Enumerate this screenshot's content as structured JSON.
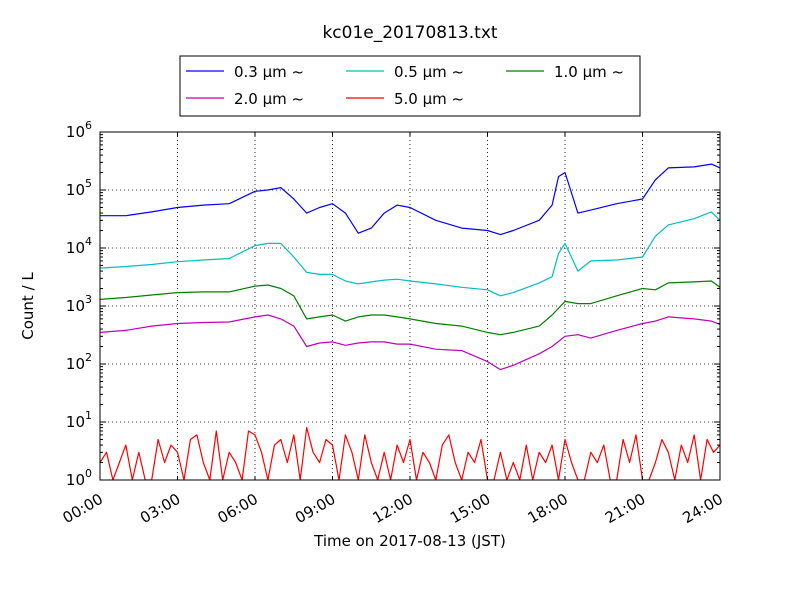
{
  "chart_data": {
    "type": "line",
    "title": "kc01e_20170813.txt",
    "xlabel": "Time on 2017-08-13 (JST)",
    "ylabel": "Count / L",
    "yscale": "log",
    "ylim": [
      1,
      1000000
    ],
    "xlim": [
      "00:00",
      "24:00"
    ],
    "xticks": [
      "00:00",
      "03:00",
      "06:00",
      "09:00",
      "12:00",
      "15:00",
      "18:00",
      "21:00",
      "24:00"
    ],
    "yticks": [
      {
        "base": "10",
        "exp": "0"
      },
      {
        "base": "10",
        "exp": "1"
      },
      {
        "base": "10",
        "exp": "2"
      },
      {
        "base": "10",
        "exp": "3"
      },
      {
        "base": "10",
        "exp": "4"
      },
      {
        "base": "10",
        "exp": "5"
      },
      {
        "base": "10",
        "exp": "6"
      }
    ],
    "grid": true,
    "legend_position": "top-center",
    "series": [
      {
        "name": "0.3 μm ~",
        "color": "#0000ff",
        "x": [
          "00:00",
          "01:00",
          "02:00",
          "03:00",
          "04:00",
          "05:00",
          "06:00",
          "06:30",
          "07:00",
          "07:30",
          "08:00",
          "08:30",
          "09:00",
          "09:30",
          "10:00",
          "10:30",
          "11:00",
          "11:30",
          "12:00",
          "13:00",
          "14:00",
          "15:00",
          "15:30",
          "16:00",
          "17:00",
          "17:30",
          "17:45",
          "18:00",
          "18:30",
          "19:00",
          "20:00",
          "21:00",
          "21:30",
          "22:00",
          "23:00",
          "23:40",
          "24:00"
        ],
        "values": [
          36000,
          36000,
          42000,
          50000,
          55000,
          58000,
          95000,
          100000,
          110000,
          70000,
          40000,
          50000,
          58000,
          40000,
          18000,
          22000,
          40000,
          55000,
          50000,
          30000,
          22000,
          20000,
          17000,
          20000,
          30000,
          55000,
          170000,
          200000,
          40000,
          45000,
          58000,
          70000,
          150000,
          240000,
          250000,
          280000,
          240000
        ]
      },
      {
        "name": "0.5 μm ~",
        "color": "#00bfbf",
        "x": [
          "00:00",
          "01:00",
          "02:00",
          "03:00",
          "04:00",
          "05:00",
          "06:00",
          "06:30",
          "07:00",
          "07:30",
          "08:00",
          "08:30",
          "09:00",
          "09:30",
          "10:00",
          "10:30",
          "11:00",
          "11:30",
          "12:00",
          "13:00",
          "14:00",
          "15:00",
          "15:30",
          "16:00",
          "17:00",
          "17:30",
          "17:45",
          "18:00",
          "18:30",
          "19:00",
          "20:00",
          "21:00",
          "21:30",
          "22:00",
          "23:00",
          "23:40",
          "24:00"
        ],
        "values": [
          4500,
          4800,
          5200,
          5800,
          6200,
          6600,
          11000,
          12000,
          12000,
          7000,
          3800,
          3500,
          3500,
          2700,
          2400,
          2600,
          2800,
          2900,
          2700,
          2400,
          2100,
          1900,
          1500,
          1700,
          2500,
          3200,
          8000,
          12000,
          4000,
          6000,
          6200,
          7000,
          16000,
          25000,
          32000,
          42000,
          30000
        ]
      },
      {
        "name": "1.0 μm ~",
        "color": "#008000",
        "x": [
          "00:00",
          "01:00",
          "02:00",
          "03:00",
          "04:00",
          "05:00",
          "06:00",
          "06:30",
          "07:00",
          "07:30",
          "08:00",
          "08:30",
          "09:00",
          "09:30",
          "10:00",
          "10:30",
          "11:00",
          "11:30",
          "12:00",
          "13:00",
          "14:00",
          "15:00",
          "15:30",
          "16:00",
          "17:00",
          "17:30",
          "18:00",
          "18:30",
          "19:00",
          "20:00",
          "21:00",
          "21:30",
          "22:00",
          "23:00",
          "23:40",
          "24:00"
        ],
        "values": [
          1300,
          1400,
          1550,
          1700,
          1750,
          1750,
          2200,
          2300,
          2000,
          1500,
          600,
          650,
          700,
          550,
          650,
          700,
          700,
          650,
          600,
          500,
          450,
          350,
          320,
          350,
          450,
          700,
          1200,
          1100,
          1100,
          1500,
          2000,
          1900,
          2500,
          2600,
          2700,
          2100
        ]
      },
      {
        "name": "2.0 μm ~",
        "color": "#bf00bf",
        "x": [
          "00:00",
          "01:00",
          "02:00",
          "03:00",
          "04:00",
          "05:00",
          "06:00",
          "06:30",
          "07:00",
          "07:30",
          "08:00",
          "08:30",
          "09:00",
          "09:30",
          "10:00",
          "10:30",
          "11:00",
          "11:30",
          "12:00",
          "13:00",
          "14:00",
          "15:00",
          "15:30",
          "16:00",
          "17:00",
          "17:30",
          "18:00",
          "18:30",
          "19:00",
          "20:00",
          "21:00",
          "21:30",
          "22:00",
          "23:00",
          "23:40",
          "24:00"
        ],
        "values": [
          350,
          380,
          450,
          500,
          520,
          530,
          650,
          700,
          600,
          450,
          200,
          230,
          240,
          210,
          230,
          240,
          240,
          220,
          220,
          180,
          170,
          110,
          80,
          95,
          150,
          200,
          300,
          320,
          280,
          380,
          500,
          550,
          650,
          600,
          550,
          480
        ]
      },
      {
        "name": "5.0 μm ~",
        "color": "#ff0000",
        "x": [
          "00:00",
          "00:15",
          "00:30",
          "00:45",
          "01:00",
          "01:15",
          "01:30",
          "01:45",
          "02:00",
          "02:15",
          "02:30",
          "02:45",
          "03:00",
          "03:15",
          "03:30",
          "03:45",
          "04:00",
          "04:15",
          "04:30",
          "04:45",
          "05:00",
          "05:15",
          "05:30",
          "05:45",
          "06:00",
          "06:15",
          "06:30",
          "06:45",
          "07:00",
          "07:15",
          "07:30",
          "07:45",
          "08:00",
          "08:15",
          "08:30",
          "08:45",
          "09:00",
          "09:15",
          "09:30",
          "09:45",
          "10:00",
          "10:15",
          "10:30",
          "10:45",
          "11:00",
          "11:15",
          "11:30",
          "11:45",
          "12:00",
          "12:15",
          "12:30",
          "12:45",
          "13:00",
          "13:15",
          "13:30",
          "13:45",
          "14:00",
          "14:15",
          "14:30",
          "14:45",
          "15:00",
          "15:15",
          "15:30",
          "15:45",
          "16:00",
          "16:15",
          "16:30",
          "16:45",
          "17:00",
          "17:15",
          "17:30",
          "17:45",
          "18:00",
          "18:15",
          "18:30",
          "18:45",
          "19:00",
          "19:15",
          "19:30",
          "19:45",
          "20:00",
          "20:15",
          "20:30",
          "20:45",
          "21:00",
          "21:15",
          "21:30",
          "21:45",
          "22:00",
          "22:15",
          "22:30",
          "22:45",
          "23:00",
          "23:15",
          "23:30",
          "23:45",
          "24:00"
        ],
        "values": [
          2,
          3,
          1,
          2,
          4,
          1,
          3,
          1,
          1,
          5,
          2,
          4,
          3,
          1,
          5,
          6,
          2,
          1,
          7,
          1,
          3,
          2,
          1,
          7,
          6,
          3,
          1,
          4,
          5,
          2,
          6,
          1,
          8,
          3,
          2,
          5,
          4,
          1,
          6,
          3,
          1,
          6,
          2,
          1,
          3,
          1,
          4,
          2,
          5,
          1,
          3,
          2,
          1,
          4,
          6,
          2,
          1,
          3,
          2,
          5,
          1,
          1,
          3,
          1,
          2,
          1,
          4,
          1,
          3,
          2,
          4,
          1,
          5,
          2,
          1,
          1,
          3,
          2,
          4,
          1,
          1,
          5,
          2,
          6,
          1,
          1,
          2,
          5,
          3,
          1,
          4,
          2,
          6,
          1,
          5,
          3,
          4
        ]
      }
    ]
  }
}
